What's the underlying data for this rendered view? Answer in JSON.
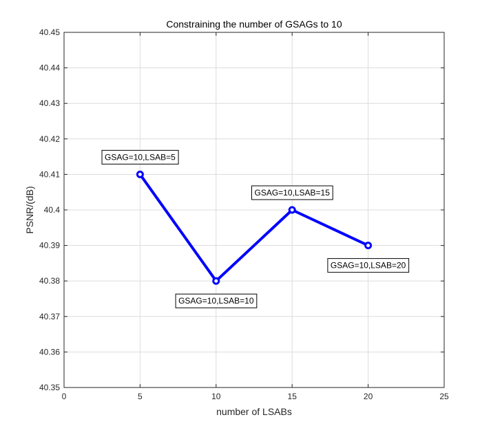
{
  "chart_data": {
    "type": "line",
    "title": "Constraining the number of GSAGs to 10",
    "xlabel": "number of LSABs",
    "ylabel": "PSNR/(dB)",
    "xlim": [
      0,
      25
    ],
    "ylim": [
      40.35,
      40.45
    ],
    "xticks": [
      0,
      5,
      10,
      15,
      20,
      25
    ],
    "xtick_labels": [
      "0",
      "5",
      "10",
      "15",
      "20",
      "25"
    ],
    "yticks": [
      40.35,
      40.36,
      40.37,
      40.38,
      40.39,
      40.4,
      40.41,
      40.42,
      40.43,
      40.44,
      40.45
    ],
    "ytick_labels": [
      "40.35",
      "40.36",
      "40.37",
      "40.38",
      "40.39",
      "40.4",
      "40.41",
      "40.42",
      "40.43",
      "40.44",
      "40.45"
    ],
    "grid": true,
    "series": [
      {
        "x": [
          5,
          10,
          15,
          20
        ],
        "y": [
          40.41,
          40.38,
          40.4,
          40.39
        ],
        "color": "#0000ff",
        "marker": "circle"
      }
    ],
    "annotations": [
      {
        "text": "GSAG=10,LSAB=5",
        "x": 5,
        "y": 40.41,
        "placement": "above"
      },
      {
        "text": "GSAG=10,LSAB=10",
        "x": 10,
        "y": 40.38,
        "placement": "below"
      },
      {
        "text": "GSAG=10,LSAB=15",
        "x": 15,
        "y": 40.4,
        "placement": "above"
      },
      {
        "text": "GSAG=10,LSAB=20",
        "x": 20,
        "y": 40.39,
        "placement": "below"
      }
    ]
  }
}
